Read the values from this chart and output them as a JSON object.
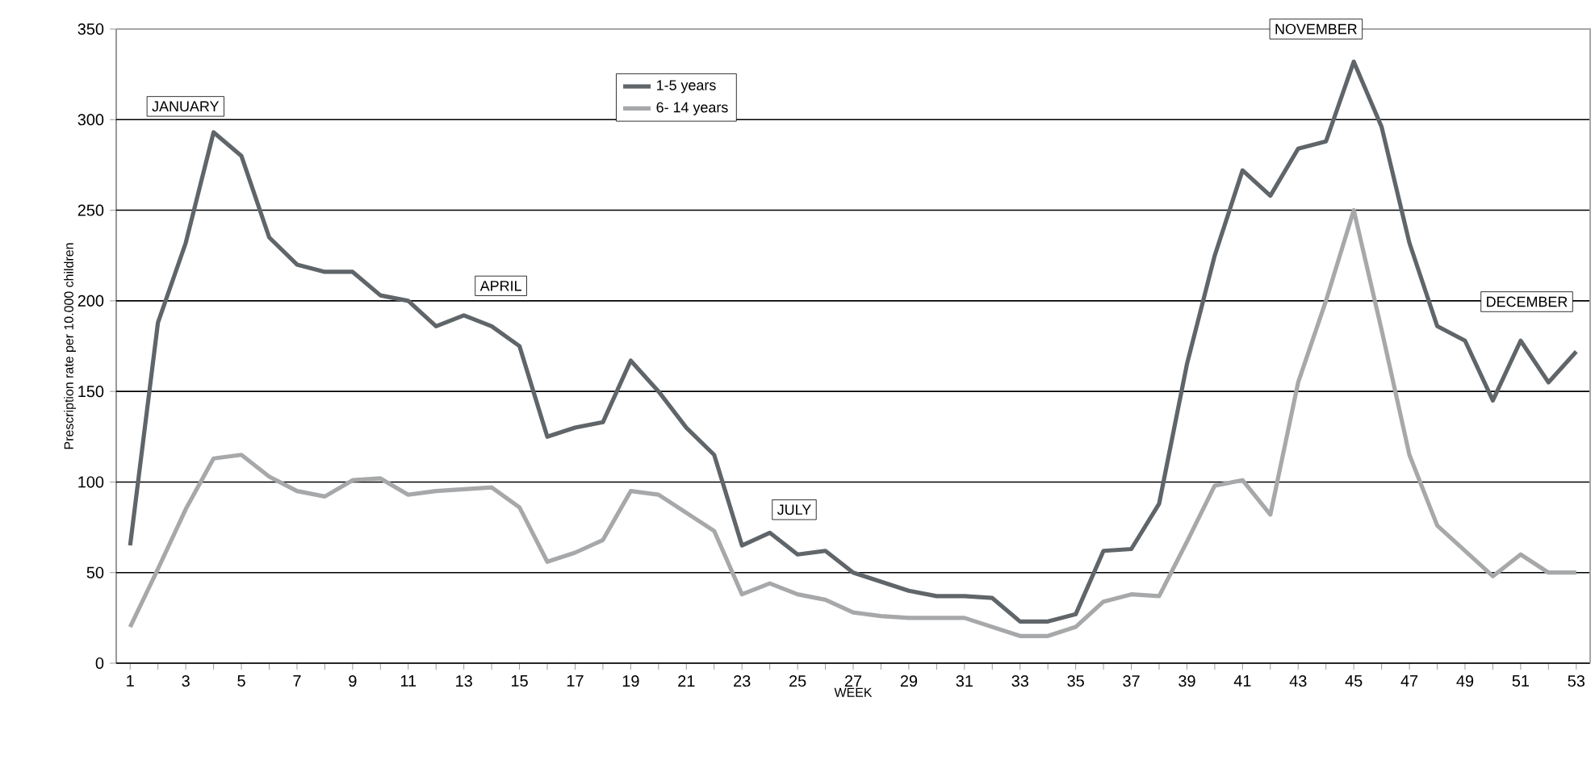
{
  "chart_data": {
    "type": "line",
    "xlabel": "WEEK",
    "ylabel": "Prescription rate per 10.000 children",
    "x": [
      1,
      2,
      3,
      4,
      5,
      6,
      7,
      8,
      9,
      10,
      11,
      12,
      13,
      14,
      15,
      16,
      17,
      18,
      19,
      20,
      21,
      22,
      23,
      24,
      25,
      26,
      27,
      28,
      29,
      30,
      31,
      32,
      33,
      34,
      35,
      36,
      37,
      38,
      39,
      40,
      41,
      42,
      43,
      44,
      45,
      46,
      47,
      48,
      49,
      50,
      51,
      52,
      53
    ],
    "series": [
      {
        "name": "1-5 years",
        "color": "#5f6569",
        "values": [
          65,
          188,
          232,
          293,
          280,
          235,
          220,
          216,
          216,
          203,
          200,
          186,
          192,
          186,
          175,
          125,
          130,
          133,
          167,
          150,
          130,
          115,
          65,
          72,
          60,
          62,
          50,
          45,
          40,
          37,
          37,
          36,
          23,
          23,
          27,
          62,
          63,
          88,
          165,
          225,
          272,
          258,
          284,
          288,
          332,
          296,
          232,
          186,
          178,
          145,
          178,
          155,
          172
        ]
      },
      {
        "name": "6- 14 years",
        "color": "#a6a8aa",
        "values": [
          20,
          52,
          85,
          113,
          115,
          103,
          95,
          92,
          101,
          102,
          93,
          95,
          96,
          97,
          86,
          56,
          61,
          68,
          95,
          93,
          83,
          73,
          38,
          44,
          38,
          35,
          28,
          26,
          25,
          25,
          25,
          20,
          15,
          15,
          20,
          34,
          38,
          37,
          67,
          98,
          101,
          82,
          155,
          200,
          250,
          184,
          115,
          76,
          62,
          48,
          60,
          50,
          50
        ]
      }
    ],
    "xlim": [
      0.5,
      53.5
    ],
    "xticks": [
      1,
      {
        "value": 2,
        "label": null
      },
      3,
      {
        "value": 4,
        "label": null
      },
      5,
      {
        "value": 6,
        "label": null
      },
      7,
      {
        "value": 8,
        "label": null
      },
      9,
      {
        "value": 10,
        "label": null
      },
      11,
      {
        "value": 12,
        "label": null
      },
      13,
      {
        "value": 14,
        "label": null
      },
      15,
      {
        "value": 16,
        "label": null
      },
      17,
      {
        "value": 18,
        "label": null
      },
      19,
      {
        "value": 20,
        "label": null
      },
      21,
      {
        "value": 22,
        "label": null
      },
      23,
      {
        "value": 24,
        "label": null
      },
      25,
      {
        "value": 26,
        "label": null
      },
      27,
      {
        "value": 28,
        "label": null
      },
      29,
      {
        "value": 30,
        "label": null
      },
      31,
      {
        "value": 32,
        "label": null
      },
      33,
      {
        "value": 34,
        "label": null
      },
      35,
      {
        "value": 36,
        "label": null
      },
      37,
      {
        "value": 38,
        "label": null
      },
      39,
      {
        "value": 40,
        "label": null
      },
      41,
      {
        "value": 42,
        "label": null
      },
      43,
      {
        "value": 44,
        "label": null
      },
      45,
      {
        "value": 46,
        "label": null
      },
      47,
      {
        "value": 48,
        "label": null
      },
      49,
      {
        "value": 50,
        "label": null
      },
      51,
      {
        "value": 52,
        "label": null
      },
      53
    ],
    "ylim": [
      0,
      350
    ],
    "yticks": [
      0,
      50,
      100,
      150,
      200,
      250,
      300,
      350
    ],
    "grid": "y",
    "legend": "top",
    "marker": "none",
    "line_style": "solid",
    "annotations": [
      "JANUARY",
      "APRIL",
      "JULY",
      "NOVEMBER",
      "DECEMBER"
    ]
  }
}
